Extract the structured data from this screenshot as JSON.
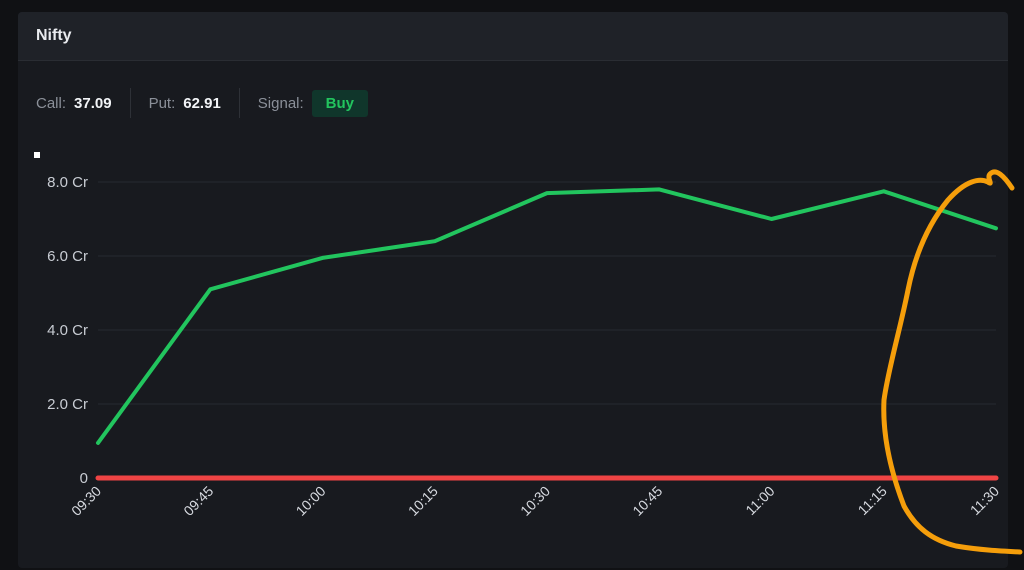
{
  "card": {
    "title": "Nifty"
  },
  "stats": {
    "call_label": "Call:",
    "call_value": "37.09",
    "put_label": "Put:",
    "put_value": "62.91",
    "signal_label": "Signal:",
    "signal_value": "Buy"
  },
  "colors": {
    "call_line": "#22c55e",
    "put_line": "#ef4444",
    "annotation": "#f59e0b",
    "grid": "#262930"
  },
  "chart_data": {
    "type": "line",
    "title": "",
    "xlabel": "",
    "ylabel": "",
    "x": [
      "09:30",
      "09:45",
      "10:00",
      "10:15",
      "10:30",
      "10:45",
      "11:00",
      "11:15",
      "11:30"
    ],
    "yticks": [
      "0",
      "2.0 Cr",
      "4.0 Cr",
      "6.0 Cr",
      "8.0 Cr"
    ],
    "ylim": [
      0,
      8.0
    ],
    "grid": true,
    "series": [
      {
        "values": [
          0.95,
          5.1,
          5.95,
          6.4,
          7.7,
          7.8,
          7.0,
          7.75,
          6.75
        ]
      },
      {
        "values": [
          0,
          0,
          0,
          0,
          0,
          0,
          0,
          0,
          0
        ]
      }
    ]
  }
}
